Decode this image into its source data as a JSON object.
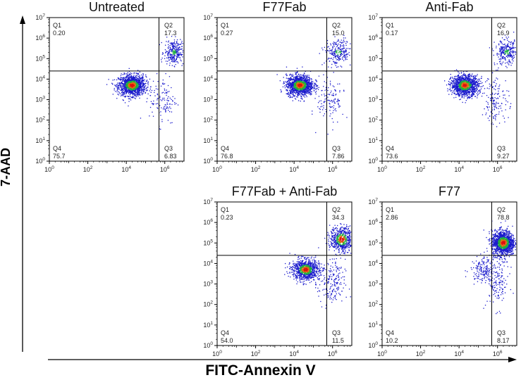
{
  "figure": {
    "y_axis_label": "7-AAD",
    "x_axis_label": "FITC-Annexin V",
    "quadrant_labels": [
      "Q1",
      "Q2",
      "Q3",
      "Q4"
    ]
  },
  "colors": {
    "low_density": "#1a1acc",
    "mid_density": "#20b040",
    "high_density": "#e07010",
    "peak_density": "#e01010",
    "gate_lines": "#000000",
    "axes": "#000000"
  },
  "chart_data": [
    {
      "type": "scatter",
      "title": "Untreated",
      "xlabel": "",
      "ylabel": "",
      "x_scale": "log10",
      "y_scale": "log10",
      "xlim": [
        1,
        10000000
      ],
      "ylim": [
        1,
        10000000
      ],
      "x_ticks": [
        "10^0",
        "10^2",
        "10^4",
        "10^6"
      ],
      "y_ticks": [
        "10^0",
        "10^1",
        "10^2",
        "10^3",
        "10^4",
        "10^5",
        "10^6",
        "10^7"
      ],
      "gate": {
        "x": 500000,
        "y": 25000
      },
      "quadrants": {
        "Q1": "0.20",
        "Q2": "17.3",
        "Q3": "6.83",
        "Q4": "75.7"
      },
      "populations": [
        {
          "cx": 20000,
          "cy": 5000,
          "spread_x": 0.35,
          "spread_y": 0.25,
          "n": 1300
        },
        {
          "cx": 3000000,
          "cy": 200000,
          "spread_x": 0.25,
          "spread_y": 0.3,
          "n": 300
        },
        {
          "cx": 800000,
          "cy": 1000,
          "spread_x": 0.35,
          "spread_y": 0.6,
          "n": 120
        }
      ]
    },
    {
      "type": "scatter",
      "title": "F77Fab",
      "xlabel": "",
      "ylabel": "",
      "x_scale": "log10",
      "y_scale": "log10",
      "xlim": [
        1,
        10000000
      ],
      "ylim": [
        1,
        10000000
      ],
      "x_ticks": [
        "10^0",
        "10^2",
        "10^4",
        "10^6"
      ],
      "y_ticks": [
        "10^0",
        "10^1",
        "10^2",
        "10^3",
        "10^4",
        "10^5",
        "10^6",
        "10^7"
      ],
      "gate": {
        "x": 500000,
        "y": 25000
      },
      "quadrants": {
        "Q1": "0.27",
        "Q2": "15.0",
        "Q3": "7.86",
        "Q4": "76.8"
      },
      "populations": [
        {
          "cx": 20000,
          "cy": 5000,
          "spread_x": 0.35,
          "spread_y": 0.25,
          "n": 1300
        },
        {
          "cx": 2000000,
          "cy": 200000,
          "spread_x": 0.35,
          "spread_y": 0.3,
          "n": 260
        },
        {
          "cx": 800000,
          "cy": 1000,
          "spread_x": 0.35,
          "spread_y": 0.6,
          "n": 130
        }
      ]
    },
    {
      "type": "scatter",
      "title": "Anti-Fab",
      "xlabel": "",
      "ylabel": "",
      "x_scale": "log10",
      "y_scale": "log10",
      "xlim": [
        1,
        10000000
      ],
      "ylim": [
        1,
        10000000
      ],
      "x_ticks": [
        "10^0",
        "10^2",
        "10^4",
        "10^6"
      ],
      "y_ticks": [
        "10^0",
        "10^1",
        "10^2",
        "10^3",
        "10^4",
        "10^5",
        "10^6",
        "10^7"
      ],
      "gate": {
        "x": 500000,
        "y": 25000
      },
      "quadrants": {
        "Q1": "0.17",
        "Q2": "16.9",
        "Q3": "9.27",
        "Q4": "73.6"
      },
      "populations": [
        {
          "cx": 20000,
          "cy": 5000,
          "spread_x": 0.35,
          "spread_y": 0.25,
          "n": 1250
        },
        {
          "cx": 3000000,
          "cy": 200000,
          "spread_x": 0.3,
          "spread_y": 0.3,
          "n": 290
        },
        {
          "cx": 800000,
          "cy": 1000,
          "spread_x": 0.35,
          "spread_y": 0.6,
          "n": 150
        }
      ]
    },
    {
      "type": "scatter",
      "title": "F77Fab + Anti-Fab",
      "xlabel": "",
      "ylabel": "",
      "x_scale": "log10",
      "y_scale": "log10",
      "xlim": [
        1,
        10000000
      ],
      "ylim": [
        1,
        10000000
      ],
      "x_ticks": [
        "10^0",
        "10^2",
        "10^4",
        "10^6"
      ],
      "y_ticks": [
        "10^0",
        "10^1",
        "10^2",
        "10^3",
        "10^4",
        "10^5",
        "10^6",
        "10^7"
      ],
      "gate": {
        "x": 500000,
        "y": 25000
      },
      "quadrants": {
        "Q1": "0.23",
        "Q2": "34.3",
        "Q3": "11.5",
        "Q4": "54.0"
      },
      "populations": [
        {
          "cx": 40000,
          "cy": 5000,
          "spread_x": 0.35,
          "spread_y": 0.25,
          "n": 950
        },
        {
          "cx": 3000000,
          "cy": 150000,
          "spread_x": 0.3,
          "spread_y": 0.3,
          "n": 600
        },
        {
          "cx": 900000,
          "cy": 1000,
          "spread_x": 0.35,
          "spread_y": 0.6,
          "n": 190
        }
      ]
    },
    {
      "type": "scatter",
      "title": "F77",
      "xlabel": "",
      "ylabel": "",
      "x_scale": "log10",
      "y_scale": "log10",
      "xlim": [
        1,
        10000000
      ],
      "ylim": [
        1,
        10000000
      ],
      "x_ticks": [
        "10^0",
        "10^2",
        "10^4",
        "10^6"
      ],
      "y_ticks": [
        "10^0",
        "10^1",
        "10^2",
        "10^3",
        "10^4",
        "10^5",
        "10^6",
        "10^7"
      ],
      "gate": {
        "x": 500000,
        "y": 25000
      },
      "quadrants": {
        "Q1": "2.86",
        "Q2": "78.8",
        "Q3": "8.17",
        "Q4": "10.2"
      },
      "populations": [
        {
          "cx": 2000000,
          "cy": 100000,
          "spread_x": 0.3,
          "spread_y": 0.3,
          "n": 1300
        },
        {
          "cx": 200000,
          "cy": 5000,
          "spread_x": 0.35,
          "spread_y": 0.3,
          "n": 180
        },
        {
          "cx": 1000000,
          "cy": 1000,
          "spread_x": 0.3,
          "spread_y": 0.6,
          "n": 130
        }
      ]
    }
  ]
}
